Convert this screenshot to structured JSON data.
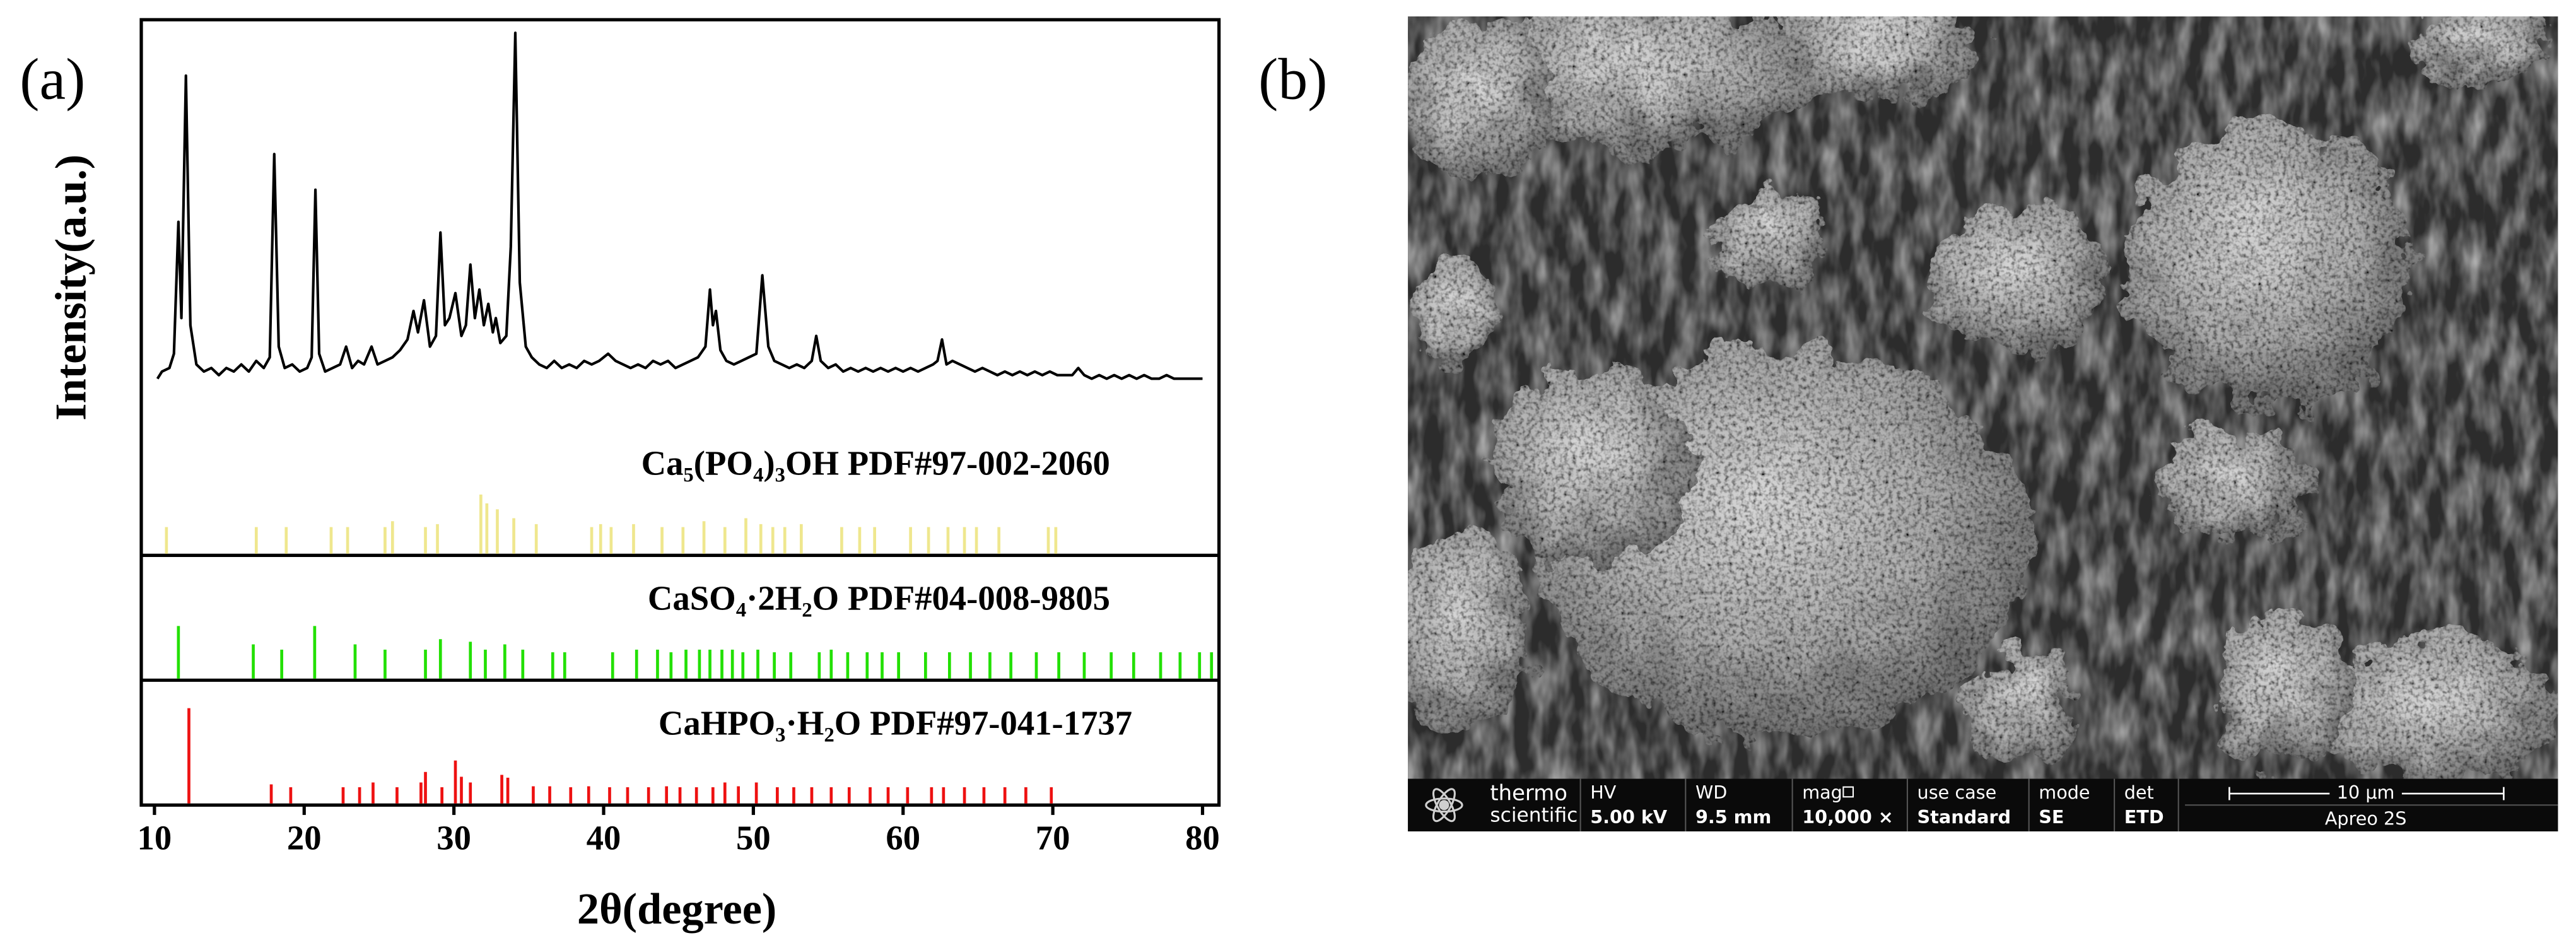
{
  "panel_labels": [
    "(a)",
    "(b)"
  ],
  "chart_data": {
    "type": "line",
    "xlabel": "2θ(degree)",
    "ylabel": "Intensity(a.u.)",
    "xlim": [
      9.12,
      81.1
    ],
    "xticks": [
      10,
      20,
      30,
      40,
      50,
      60,
      70,
      80
    ],
    "ylim": [
      0,
      100
    ],
    "color": "#000000",
    "x": [
      10.2,
      10.5,
      11.0,
      11.3,
      11.6,
      11.8,
      12.1,
      12.4,
      12.8,
      13.3,
      13.8,
      14.3,
      14.8,
      15.3,
      15.8,
      16.3,
      16.8,
      17.3,
      17.7,
      18.0,
      18.3,
      18.7,
      19.2,
      19.7,
      20.2,
      20.5,
      20.75,
      21.0,
      21.4,
      21.9,
      22.4,
      22.8,
      23.2,
      23.6,
      24.0,
      24.5,
      24.9,
      25.4,
      25.9,
      26.4,
      26.9,
      27.3,
      27.6,
      28.0,
      28.4,
      28.8,
      29.1,
      29.4,
      29.7,
      30.1,
      30.5,
      30.8,
      31.1,
      31.4,
      31.7,
      32.0,
      32.3,
      32.6,
      32.8,
      33.1,
      33.5,
      33.8,
      34.1,
      34.4,
      34.8,
      35.2,
      35.7,
      36.2,
      36.7,
      37.2,
      37.7,
      38.2,
      38.7,
      39.2,
      39.7,
      40.3,
      40.8,
      41.3,
      41.8,
      42.3,
      42.8,
      43.3,
      43.8,
      44.3,
      44.8,
      45.3,
      45.8,
      46.3,
      46.8,
      47.1,
      47.3,
      47.5,
      47.8,
      48.2,
      48.7,
      49.2,
      49.7,
      50.2,
      50.6,
      51.0,
      51.4,
      51.9,
      52.4,
      52.9,
      53.4,
      53.9,
      54.2,
      54.5,
      55.0,
      55.5,
      56.0,
      56.5,
      57.0,
      57.5,
      58.0,
      58.5,
      59.0,
      59.5,
      60.0,
      60.5,
      61.0,
      61.5,
      62.0,
      62.3,
      62.6,
      62.9,
      63.3,
      63.8,
      64.3,
      64.8,
      65.3,
      65.8,
      66.3,
      66.8,
      67.3,
      67.8,
      68.3,
      68.8,
      69.3,
      69.8,
      70.3,
      70.8,
      71.3,
      71.7,
      72.1,
      72.6,
      73.1,
      73.6,
      74.1,
      74.6,
      75.1,
      75.6,
      76.1,
      76.6,
      77.1,
      77.6,
      78.1,
      78.6,
      79.1,
      79.6,
      80.0
    ],
    "values": [
      3,
      5,
      6,
      10,
      47,
      20,
      88,
      18,
      7,
      5,
      6,
      4,
      6,
      5,
      7,
      5,
      8,
      6,
      9,
      66,
      12,
      6,
      7,
      5,
      6,
      9,
      56,
      10,
      5,
      6,
      7,
      12,
      6,
      8,
      7,
      12,
      7,
      8,
      9,
      11,
      14,
      22,
      16,
      25,
      12,
      15,
      44,
      18,
      20,
      27,
      15,
      18,
      35,
      20,
      28,
      18,
      24,
      16,
      20,
      13,
      15,
      40,
      100,
      30,
      12,
      9,
      7,
      6,
      8,
      6,
      7,
      6,
      8,
      7,
      8,
      10,
      8,
      7,
      6,
      7,
      6,
      8,
      7,
      8,
      6,
      7,
      8,
      9,
      12,
      28,
      18,
      22,
      11,
      8,
      7,
      8,
      9,
      10,
      32,
      12,
      8,
      7,
      6,
      7,
      6,
      8,
      15,
      8,
      6,
      7,
      5,
      6,
      5,
      6,
      5,
      6,
      5,
      6,
      5,
      6,
      5,
      6,
      7,
      8,
      14,
      7,
      8,
      7,
      6,
      5,
      6,
      5,
      4,
      5,
      4,
      5,
      4,
      5,
      4,
      5,
      4,
      4,
      4,
      6,
      4,
      3,
      4,
      3,
      4,
      3,
      4,
      3,
      4,
      3,
      3,
      4,
      3,
      3,
      3,
      3,
      3
    ],
    "references": [
      {
        "label": "Ca₅(PO₄)₃OH PDF#97-002-2060",
        "color": "#efe78e",
        "x": [
          10.8,
          16.8,
          18.8,
          21.8,
          22.9,
          25.4,
          25.9,
          28.1,
          28.9,
          31.8,
          32.2,
          32.9,
          34.0,
          35.5,
          39.2,
          39.8,
          40.5,
          42.0,
          43.9,
          45.3,
          46.7,
          48.1,
          49.5,
          50.5,
          51.3,
          52.1,
          53.2,
          55.9,
          57.1,
          58.1,
          60.5,
          61.7,
          63.0,
          64.1,
          64.9,
          66.4,
          69.7,
          70.2
        ],
        "values": [
          45,
          45,
          45,
          45,
          45,
          45,
          55,
          45,
          50,
          100,
          85,
          75,
          60,
          50,
          45,
          50,
          45,
          50,
          45,
          45,
          55,
          45,
          60,
          50,
          45,
          45,
          50,
          45,
          45,
          45,
          45,
          45,
          45,
          45,
          45,
          45,
          45,
          45
        ]
      },
      {
        "label": "CaSO₄·2H₂O PDF#04-008-9805",
        "color": "#22e000",
        "x": [
          11.6,
          16.6,
          18.5,
          20.7,
          23.4,
          25.4,
          28.1,
          29.1,
          31.1,
          32.1,
          33.4,
          34.6,
          36.6,
          37.4,
          40.6,
          42.2,
          43.6,
          44.5,
          45.5,
          46.4,
          47.1,
          47.9,
          48.6,
          49.3,
          50.3,
          51.4,
          52.5,
          54.4,
          55.2,
          56.3,
          57.6,
          58.6,
          59.7,
          61.5,
          63.1,
          64.5,
          65.8,
          67.2,
          68.9,
          70.4,
          72.1,
          73.9,
          75.4,
          77.2,
          78.5,
          79.8,
          80.6
        ],
        "values": [
          100,
          65,
          55,
          100,
          65,
          55,
          55,
          75,
          70,
          55,
          65,
          55,
          50,
          50,
          50,
          55,
          55,
          50,
          55,
          55,
          55,
          55,
          55,
          50,
          55,
          50,
          50,
          50,
          55,
          50,
          50,
          50,
          50,
          50,
          50,
          50,
          50,
          50,
          50,
          50,
          50,
          50,
          50,
          50,
          50,
          50,
          50
        ]
      },
      {
        "label": "CaHPO₃·H₂O PDF#97-041-1737",
        "color": "#ee1111",
        "x": [
          12.3,
          17.8,
          19.1,
          22.6,
          23.7,
          24.6,
          26.2,
          27.8,
          28.1,
          29.2,
          30.1,
          30.5,
          31.1,
          33.2,
          33.6,
          35.3,
          36.4,
          37.8,
          39.0,
          40.4,
          41.6,
          43.0,
          44.2,
          45.1,
          46.2,
          47.3,
          48.1,
          49.0,
          50.2,
          51.6,
          52.7,
          53.9,
          55.2,
          56.4,
          57.8,
          59.0,
          60.3,
          61.9,
          62.7,
          64.1,
          65.4,
          66.8,
          68.2,
          69.9
        ],
        "values": [
          100,
          20,
          17,
          17,
          17,
          22,
          17,
          22,
          33,
          17,
          45,
          28,
          22,
          30,
          27,
          18,
          18,
          17,
          18,
          17,
          17,
          17,
          18,
          17,
          17,
          17,
          22,
          18,
          22,
          17,
          17,
          17,
          17,
          17,
          17,
          17,
          17,
          17,
          17,
          17,
          17,
          17,
          17,
          17
        ]
      }
    ]
  },
  "sem_image": {
    "brand": [
      "thermo",
      "scientific"
    ],
    "info_bar": [
      {
        "label": "HV",
        "value": "5.00 kV"
      },
      {
        "label": "WD",
        "value": "9.5 mm"
      },
      {
        "label": "mag",
        "value": "10,000 ×"
      },
      {
        "label": "use case",
        "value": "Standard"
      },
      {
        "label": "mode",
        "value": "SE"
      },
      {
        "label": "det",
        "value": "ETD"
      }
    ],
    "scale_bar": "10 µm",
    "instrument": "Apreo 2S"
  }
}
